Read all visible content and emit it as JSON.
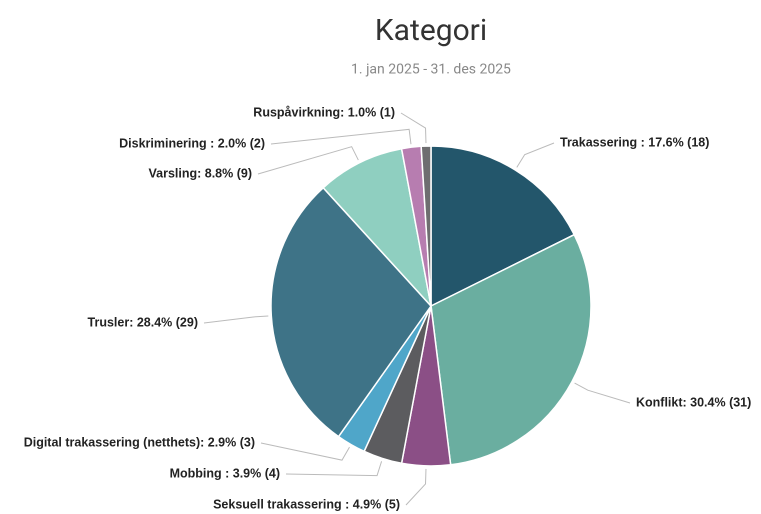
{
  "chart_data": {
    "type": "pie",
    "title": "Kategori",
    "subtitle": "1. jan 2025 - 31. des 2025",
    "values": [
      18,
      31,
      5,
      4,
      3,
      29,
      9,
      2,
      1
    ],
    "value_labels": [
      "Trakassering : 17.6% (18)",
      "Konflikt: 30.4% (31)",
      "Seksuell trakassering : 4.9% (5)",
      "Mobbing : 3.9% (4)",
      "Digital trakassering (netthets): 2.9% (3)",
      "Trusler: 28.4% (29)",
      "Varsling: 8.8% (9)",
      "Diskriminering : 2.0% (2)",
      "Ruspåvirkning: 1.0% (1)"
    ],
    "colors": [
      "#23566b",
      "#6aaea0",
      "#8b4f86",
      "#5c5c5f",
      "#4fa6c9",
      "#3e7387",
      "#8fcfc0",
      "#b77db0",
      "#6e6e70"
    ]
  }
}
